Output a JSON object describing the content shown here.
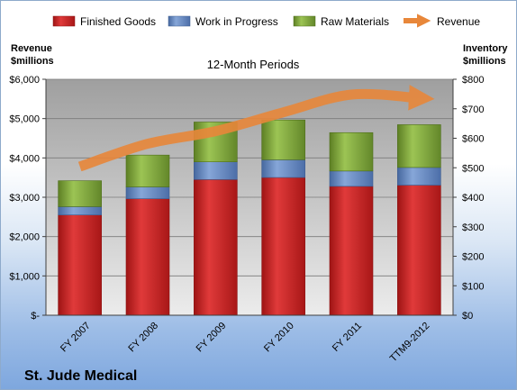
{
  "chart_data": {
    "type": "bar",
    "stacked": true,
    "title": "St. Jude Medical",
    "subtitle": "12-Month Periods",
    "categories": [
      "FY 2007",
      "FY 2008",
      "FY 2009",
      "FY 2010",
      "FY 2011",
      "TTM9-2012"
    ],
    "series": [
      {
        "name": "Finished Goods",
        "color": "#cc1f1f",
        "axis": "right",
        "values": [
          340,
          395,
          460,
          467,
          437,
          441
        ]
      },
      {
        "name": "Work in Progress",
        "color": "#5b82c4",
        "axis": "right",
        "values": [
          28,
          40,
          60,
          60,
          52,
          60
        ]
      },
      {
        "name": "Raw Materials",
        "color": "#7ca335",
        "axis": "right",
        "values": [
          88,
          108,
          135,
          135,
          130,
          145
        ]
      }
    ],
    "line_series": {
      "name": "Revenue",
      "color": "#e8873a",
      "axis": "left",
      "values": [
        3780,
        4360,
        4680,
        5160,
        5610,
        5520
      ]
    },
    "y_left": {
      "label_line1": "Revenue",
      "label_line2": "$millions",
      "range": [
        0,
        6000
      ],
      "ticks": [
        "$-",
        "$1,000",
        "$2,000",
        "$3,000",
        "$4,000",
        "$5,000",
        "$6,000"
      ]
    },
    "y_right": {
      "label_line1": "Inventory",
      "label_line2": "$millions",
      "range": [
        0,
        800
      ],
      "ticks": [
        "$0",
        "$100",
        "$200",
        "$300",
        "$400",
        "$500",
        "$600",
        "$700",
        "$800"
      ]
    },
    "legend_position": "top",
    "grid": true
  }
}
